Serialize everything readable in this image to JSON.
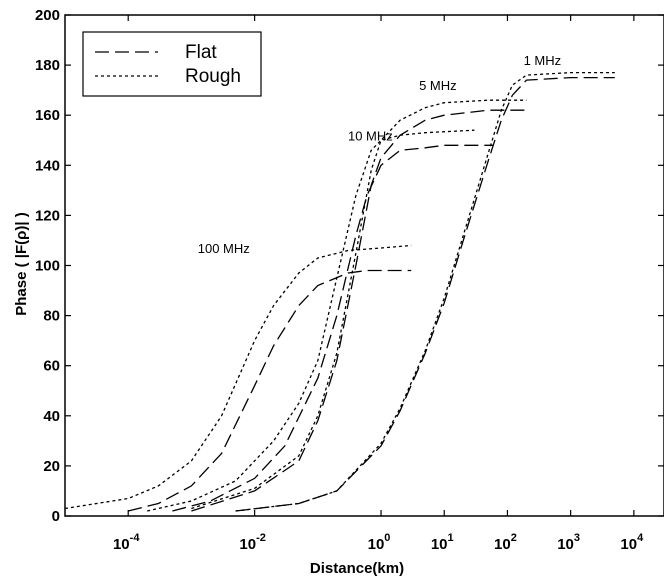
{
  "chart_data": {
    "type": "line",
    "title": "",
    "xlabel": "Distance(km)",
    "ylabel": "Phase ( |F(ρ)| )",
    "xscale": "log",
    "xlim": [
      1e-05,
      30000
    ],
    "ylim": [
      0,
      200
    ],
    "yticks": [
      0,
      20,
      40,
      60,
      80,
      100,
      120,
      140,
      160,
      180,
      200
    ],
    "xticks": [
      {
        "value": 0.0001,
        "base": "10",
        "exp": "-4"
      },
      {
        "value": 0.01,
        "base": "10",
        "exp": "-2"
      },
      {
        "value": 1,
        "base": "10",
        "exp": "0"
      },
      {
        "value": 10,
        "base": "10",
        "exp": "1"
      },
      {
        "value": 100,
        "base": "10",
        "exp": "2"
      },
      {
        "value": 1000,
        "base": "10",
        "exp": "3"
      },
      {
        "value": 10000,
        "base": "10",
        "exp": "4"
      }
    ],
    "grid": false,
    "legend": {
      "position": "top-left",
      "entries": [
        {
          "label": "Flat",
          "style": "dashed"
        },
        {
          "label": "Rough",
          "style": "dotted"
        }
      ]
    },
    "annotations": [
      {
        "text": "1 MHz",
        "x": 180,
        "y": 180
      },
      {
        "text": "5 MHz",
        "x": 4,
        "y": 170
      },
      {
        "text": "10 MHz",
        "x": 0.3,
        "y": 150
      },
      {
        "text": "100 MHz",
        "x": 0.00126,
        "y": 105
      }
    ],
    "series": [
      {
        "group": "100 MHz",
        "style": "dashed",
        "x": [
          0.0001,
          0.0003,
          0.001,
          0.003,
          0.01,
          0.02,
          0.05,
          0.1,
          0.3,
          0.6,
          1,
          3
        ],
        "y": [
          2,
          5,
          12,
          25,
          52,
          68,
          84,
          92,
          97,
          98,
          98,
          98
        ]
      },
      {
        "group": "100 MHz",
        "style": "dotted",
        "x": [
          1e-05,
          0.0001,
          0.0003,
          0.001,
          0.003,
          0.01,
          0.02,
          0.05,
          0.1,
          0.3,
          1,
          3
        ],
        "y": [
          3,
          7,
          12,
          22,
          40,
          70,
          84,
          97,
          103,
          106,
          107,
          108
        ]
      },
      {
        "group": "10 MHz",
        "style": "dashed",
        "x": [
          0.0005,
          0.002,
          0.01,
          0.03,
          0.1,
          0.2,
          0.4,
          0.6,
          1,
          2,
          5,
          10,
          60
        ],
        "y": [
          2,
          6,
          15,
          28,
          55,
          80,
          112,
          128,
          140,
          146,
          147,
          148,
          148
        ]
      },
      {
        "group": "10 MHz",
        "style": "dotted",
        "x": [
          0.0002,
          0.001,
          0.005,
          0.02,
          0.05,
          0.1,
          0.2,
          0.4,
          0.7,
          1,
          2,
          5,
          30
        ],
        "y": [
          2,
          6,
          14,
          30,
          45,
          62,
          95,
          128,
          146,
          150,
          152,
          153,
          154
        ]
      },
      {
        "group": "5 MHz",
        "style": "dashed",
        "x": [
          0.001,
          0.01,
          0.05,
          0.1,
          0.2,
          0.4,
          0.7,
          1,
          2,
          5,
          10,
          50,
          200
        ],
        "y": [
          2,
          10,
          22,
          38,
          62,
          100,
          132,
          143,
          152,
          158,
          160,
          162,
          162
        ]
      },
      {
        "group": "5 MHz",
        "style": "dotted",
        "x": [
          0.001,
          0.01,
          0.05,
          0.1,
          0.2,
          0.4,
          0.7,
          1,
          2,
          5,
          10,
          50,
          200
        ],
        "y": [
          3,
          11,
          24,
          40,
          65,
          105,
          138,
          150,
          158,
          163,
          165,
          166,
          166
        ]
      },
      {
        "group": "1 MHz",
        "style": "dashed",
        "x": [
          0.005,
          0.05,
          0.2,
          1,
          2,
          5,
          10,
          20,
          50,
          80,
          120,
          200,
          1000,
          5000
        ],
        "y": [
          2,
          5,
          10,
          28,
          42,
          65,
          85,
          110,
          142,
          158,
          168,
          174,
          175,
          175
        ]
      },
      {
        "group": "1 MHz",
        "style": "dotted",
        "x": [
          0.005,
          0.05,
          0.2,
          1,
          2,
          5,
          10,
          20,
          50,
          80,
          120,
          200,
          1000,
          5000
        ],
        "y": [
          2,
          5,
          10,
          29,
          43,
          66,
          87,
          112,
          145,
          162,
          172,
          176,
          177,
          177
        ]
      }
    ]
  }
}
